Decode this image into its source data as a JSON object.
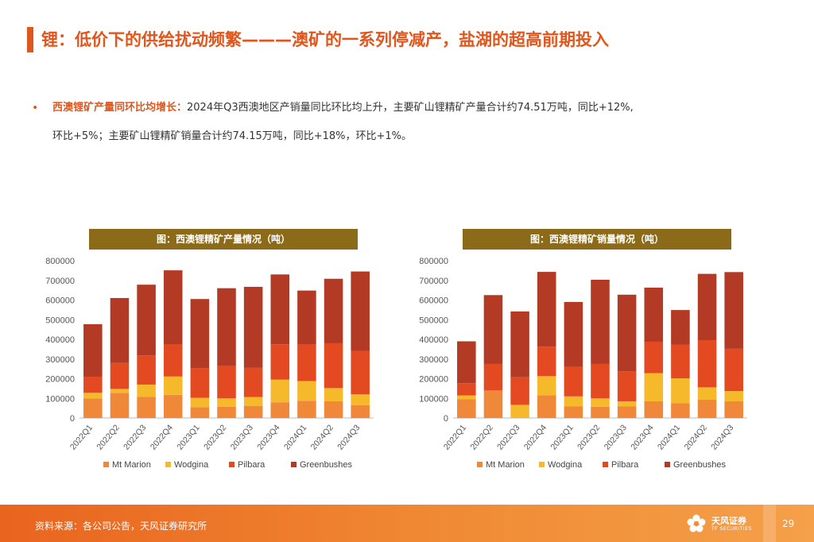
{
  "page_title": "锂：低价下的供给扰动频繁———澳矿的一系列停减产，盐湖的超高前期投入",
  "bullet": {
    "head": "西澳锂矿产量同环比均增长：",
    "line1": "2024年Q3西澳地区产销量同比环比均上升，主要矿山锂精矿产量合计约74.51万吨，同比+12%,",
    "line2": "环比+5%；主要矿山锂精矿销量合计约74.15万吨，同比+18%，环比+1%。"
  },
  "colors": {
    "accent": "#e0561c",
    "header_bg": "#8b6a1a",
    "mt_marion": "#f0883a",
    "wodgina": "#f7b92c",
    "pilbara": "#e34a22",
    "greenbushes": "#b33a24"
  },
  "chart_data": [
    {
      "type": "bar",
      "stacked": true,
      "title": "图：西澳锂精矿产量情况（吨）",
      "categories": [
        "2022Q1",
        "2022Q2",
        "2022Q3",
        "2022Q4",
        "2023Q1",
        "2023Q2",
        "2023Q3",
        "2023Q4",
        "2024Q1",
        "2024Q2",
        "2024Q3"
      ],
      "series": [
        {
          "name": "Mt Marion",
          "values": [
            100000,
            128000,
            108000,
            118000,
            55000,
            57000,
            62000,
            80000,
            88000,
            85000,
            65000
          ]
        },
        {
          "name": "Wodgina",
          "values": [
            28000,
            20000,
            62000,
            93000,
            48000,
            43000,
            45000,
            115000,
            100000,
            67000,
            55000
          ]
        },
        {
          "name": "Pilbara",
          "values": [
            82000,
            132000,
            148000,
            163000,
            150000,
            165000,
            148000,
            180000,
            185000,
            228000,
            220000
          ]
        },
        {
          "name": "Greenbushes",
          "values": [
            267000,
            330000,
            360000,
            377000,
            352000,
            395000,
            412000,
            355000,
            275000,
            328000,
            405000
          ]
        }
      ],
      "ylim": [
        0,
        800000
      ],
      "yticks": [
        "0",
        "100000",
        "200000",
        "300000",
        "400000",
        "500000",
        "600000",
        "700000",
        "800000"
      ],
      "legend_position": "bottom"
    },
    {
      "type": "bar",
      "stacked": true,
      "title": "图：西澳锂精矿销量情况（吨）",
      "categories": [
        "2022Q1",
        "2022Q2",
        "2022Q3",
        "2022Q4",
        "2023Q1",
        "2023Q2",
        "2023Q3",
        "2023Q4",
        "2024Q1",
        "2024Q2",
        "2024Q3"
      ],
      "series": [
        {
          "name": "Mt Marion",
          "values": [
            95000,
            140000,
            0,
            115000,
            60000,
            57000,
            60000,
            85000,
            75000,
            93000,
            85000
          ]
        },
        {
          "name": "Wodgina",
          "values": [
            20000,
            0,
            67000,
            98000,
            50000,
            43000,
            25000,
            143000,
            127000,
            63000,
            52000
          ]
        },
        {
          "name": "Pilbara",
          "values": [
            62000,
            135000,
            140000,
            150000,
            150000,
            175000,
            152000,
            160000,
            170000,
            240000,
            215000
          ]
        },
        {
          "name": "Greenbushes",
          "values": [
            213000,
            350000,
            335000,
            380000,
            330000,
            428000,
            390000,
            275000,
            177000,
            337000,
            390000
          ]
        }
      ],
      "ylim": [
        0,
        800000
      ],
      "yticks": [
        "0",
        "100000",
        "200000",
        "300000",
        "400000",
        "500000",
        "600000",
        "700000",
        "800000"
      ],
      "legend_position": "bottom"
    }
  ],
  "legend_icon": "square-marker",
  "footer": {
    "source": "资料来源：各公司公告，天风证券研究所",
    "brand": "天风证券",
    "brand_sub": "TF SECURITIES",
    "page_number": "29"
  }
}
